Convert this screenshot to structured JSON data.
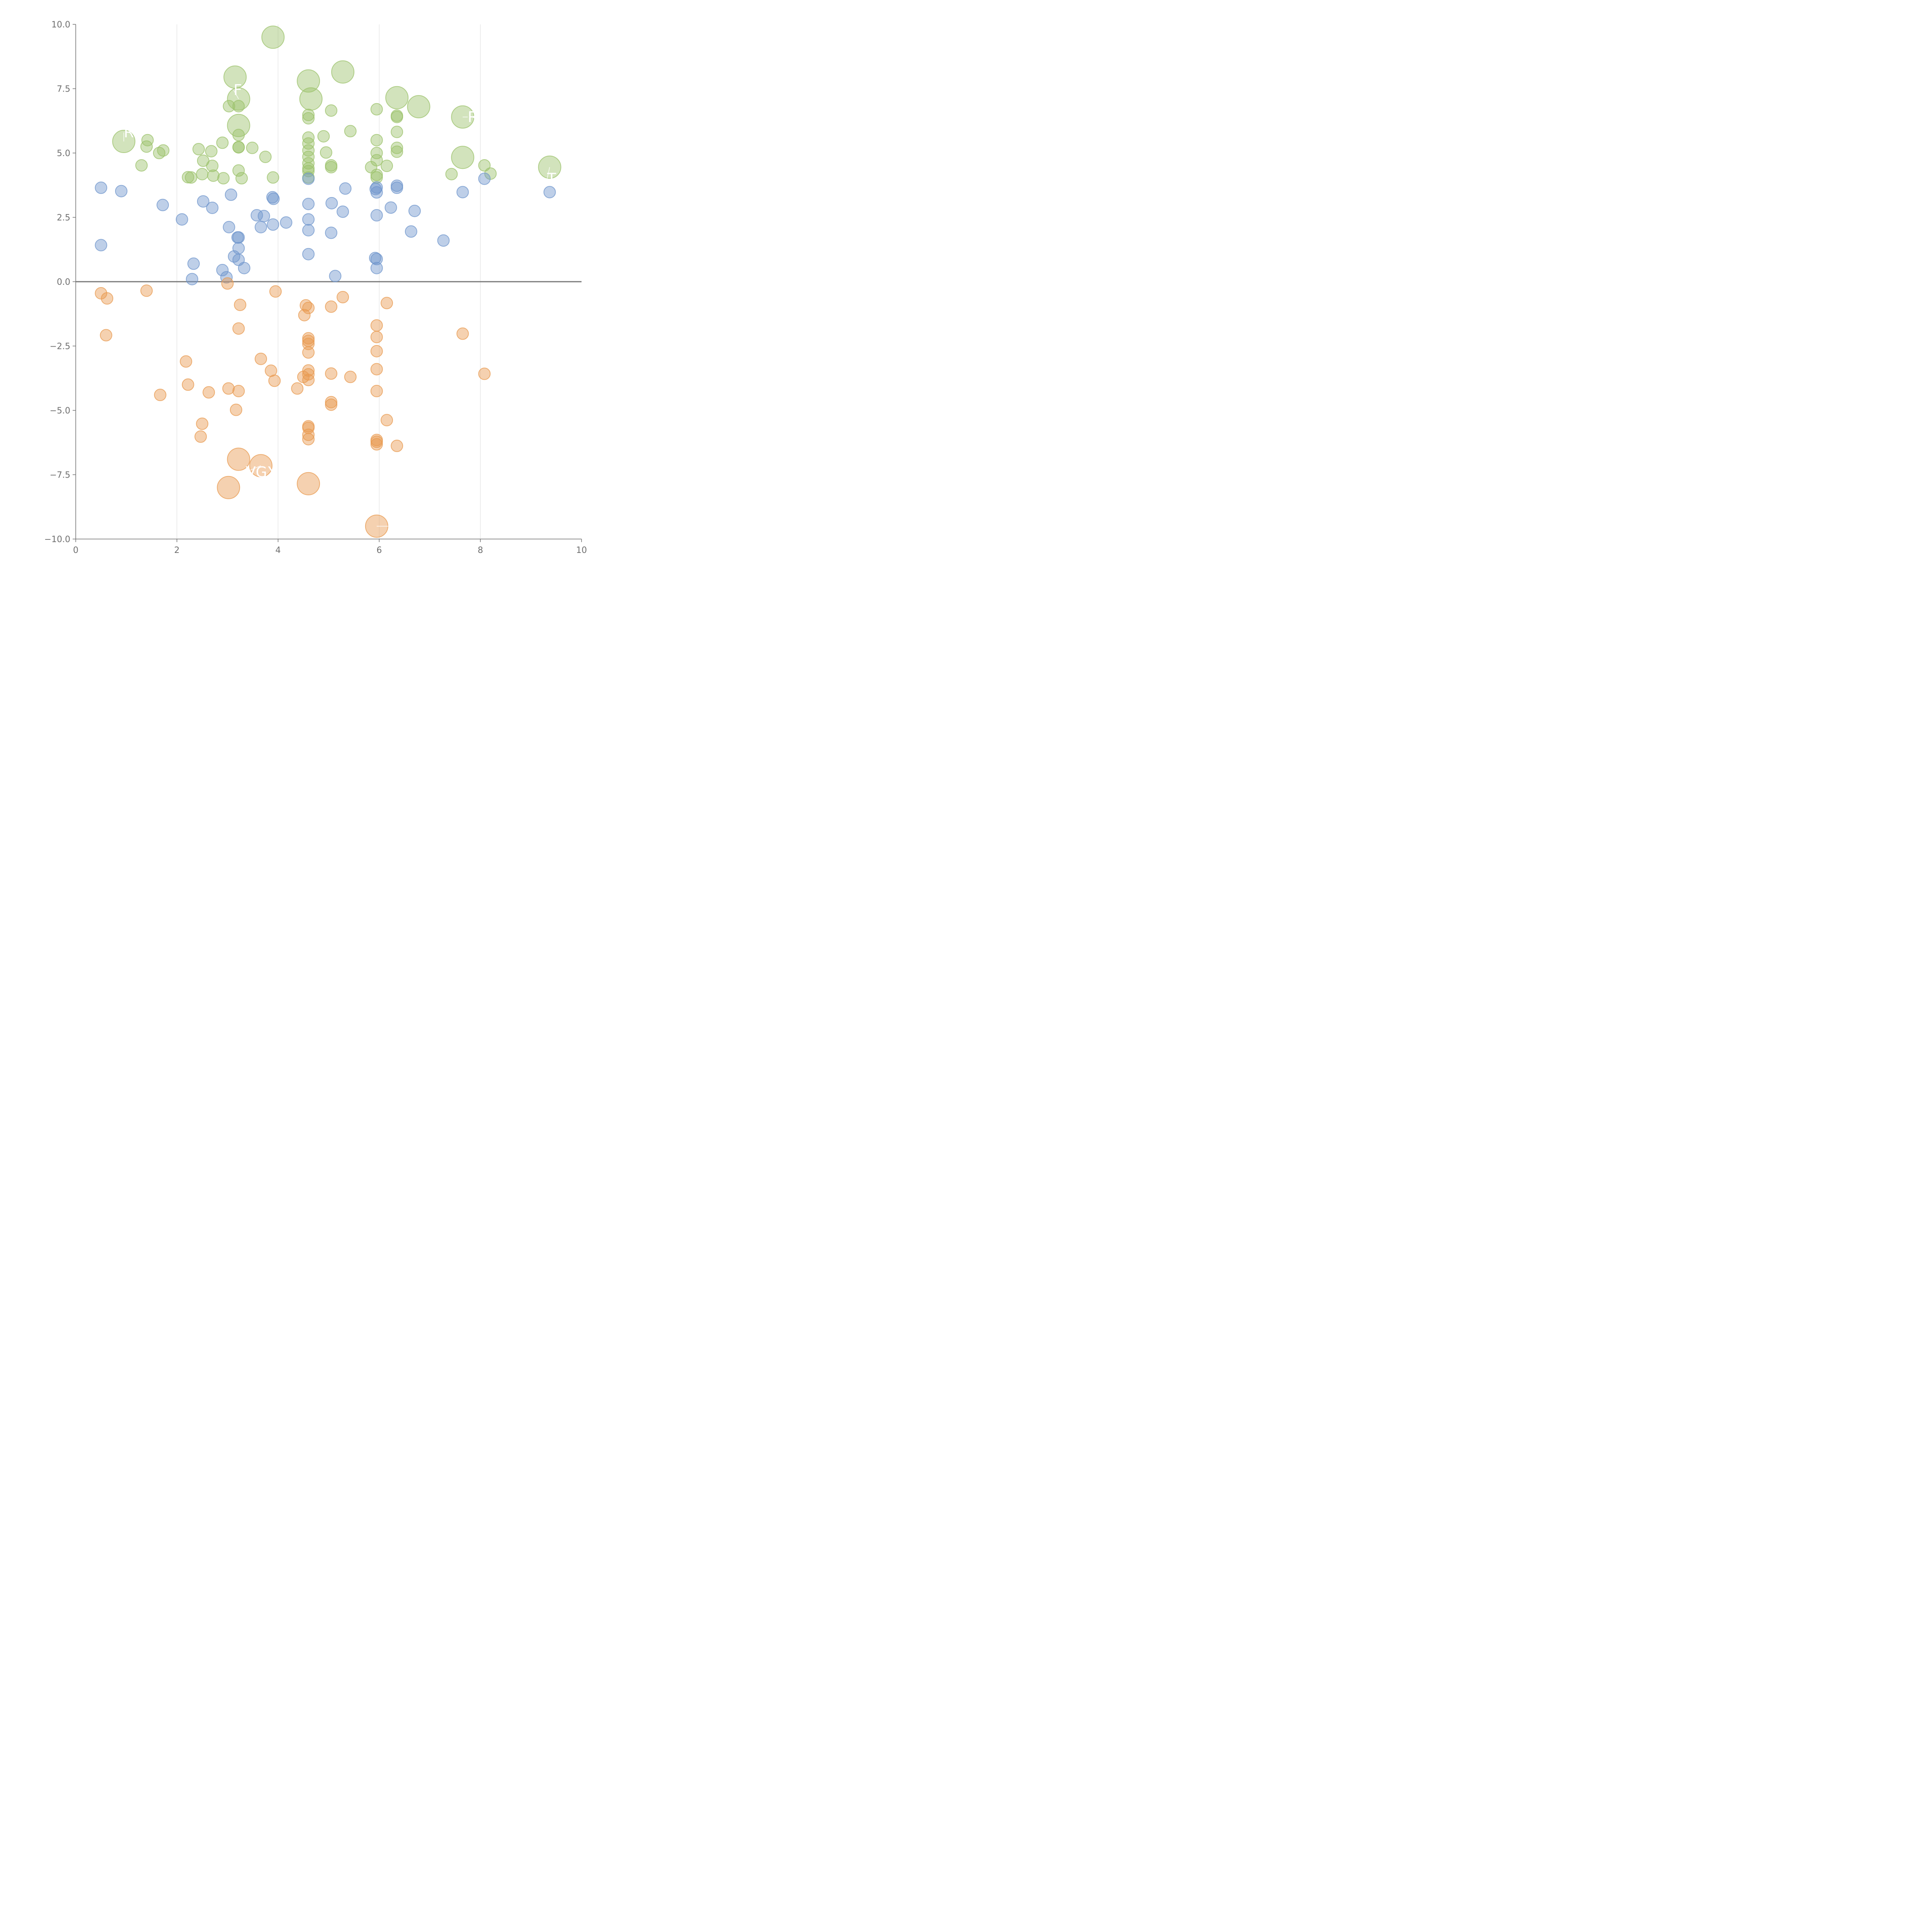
{
  "colors": {
    "green": "#9bc26a",
    "blue": "#6f95cc",
    "orange": "#e8994f",
    "axis": "#6f6f6f",
    "grid": "#dcdcdc",
    "zero_line": "#777777"
  },
  "chart_data": {
    "type": "scatter",
    "title": "",
    "xlabel": "",
    "ylabel": "",
    "xlim": [
      0,
      10
    ],
    "ylim": [
      -10,
      10
    ],
    "x_ticks": [
      "0",
      "2",
      "4",
      "6",
      "8",
      "10"
    ],
    "y_ticks": [
      "10.0",
      "7.5",
      "5.0",
      "2.5",
      "0.0",
      "−2.5",
      "−5.0",
      "−7.5",
      "−10.0"
    ],
    "grid": "vertical lines at x = 2, 4, 6, 8",
    "reference_line": "horizontal at y = 0",
    "series": [
      {
        "color": "green",
        "points": [
          [
            3.9,
            9.5,
            2
          ],
          [
            3.15,
            7.95,
            2
          ],
          [
            4.6,
            7.8,
            2
          ],
          [
            5.28,
            8.15,
            2
          ],
          [
            3.22,
            7.1,
            2
          ],
          [
            4.65,
            7.1,
            2
          ],
          [
            6.35,
            7.15,
            2
          ],
          [
            6.78,
            6.8,
            2
          ],
          [
            7.65,
            6.4,
            2
          ],
          [
            3.22,
            6.07,
            2
          ],
          [
            0.95,
            5.45,
            2
          ],
          [
            7.65,
            4.83,
            2
          ],
          [
            9.37,
            4.45,
            2
          ],
          [
            3.03,
            6.82,
            1
          ],
          [
            3.22,
            6.82,
            1
          ],
          [
            4.6,
            6.48,
            1
          ],
          [
            4.6,
            6.35,
            1
          ],
          [
            5.05,
            6.65,
            1
          ],
          [
            5.95,
            6.7,
            1
          ],
          [
            6.35,
            6.45,
            1
          ],
          [
            6.35,
            6.4,
            1
          ],
          [
            5.43,
            5.85,
            1
          ],
          [
            4.9,
            5.65,
            1
          ],
          [
            6.35,
            5.82,
            1
          ],
          [
            3.22,
            5.7,
            1
          ],
          [
            4.6,
            5.6,
            1
          ],
          [
            5.95,
            5.5,
            1
          ],
          [
            4.6,
            5.37,
            1
          ],
          [
            1.42,
            5.5,
            1
          ],
          [
            1.4,
            5.25,
            1
          ],
          [
            1.65,
            5.0,
            1
          ],
          [
            1.73,
            5.1,
            1
          ],
          [
            1.3,
            4.52,
            1
          ],
          [
            2.43,
            5.15,
            1
          ],
          [
            2.68,
            5.07,
            1
          ],
          [
            2.9,
            5.4,
            1
          ],
          [
            3.22,
            5.23,
            1
          ],
          [
            3.22,
            5.22,
            1
          ],
          [
            3.49,
            5.2,
            1
          ],
          [
            2.52,
            4.7,
            1
          ],
          [
            2.7,
            4.5,
            1
          ],
          [
            2.5,
            4.18,
            1
          ],
          [
            2.72,
            4.12,
            1
          ],
          [
            2.92,
            4.02,
            1
          ],
          [
            2.22,
            4.06,
            1
          ],
          [
            2.28,
            4.05,
            1
          ],
          [
            3.22,
            4.32,
            1
          ],
          [
            3.28,
            4.02,
            1
          ],
          [
            3.75,
            4.85,
            1
          ],
          [
            3.9,
            4.05,
            1
          ],
          [
            4.6,
            5.1,
            1
          ],
          [
            4.6,
            4.85,
            1
          ],
          [
            4.6,
            4.6,
            1
          ],
          [
            4.6,
            4.4,
            1
          ],
          [
            4.6,
            4.3,
            1
          ],
          [
            4.6,
            4.05,
            1
          ],
          [
            4.95,
            5.02,
            1
          ],
          [
            5.05,
            4.52,
            1
          ],
          [
            5.05,
            4.45,
            1
          ],
          [
            5.84,
            4.45,
            1
          ],
          [
            5.95,
            5.0,
            1
          ],
          [
            5.95,
            4.72,
            1
          ],
          [
            5.95,
            4.15,
            1
          ],
          [
            5.95,
            4.05,
            1
          ],
          [
            6.15,
            4.5,
            1
          ],
          [
            6.35,
            5.2,
            1
          ],
          [
            6.35,
            5.05,
            1
          ],
          [
            7.43,
            4.18,
            1
          ],
          [
            8.08,
            4.52,
            1
          ],
          [
            8.2,
            4.2,
            1
          ]
        ]
      },
      {
        "color": "blue",
        "points": [
          [
            0.5,
            3.65,
            1
          ],
          [
            0.9,
            3.52,
            1
          ],
          [
            1.72,
            2.98,
            1
          ],
          [
            2.1,
            2.42,
            1
          ],
          [
            2.52,
            3.12,
            1
          ],
          [
            2.7,
            2.87,
            1
          ],
          [
            3.07,
            3.38,
            1
          ],
          [
            3.03,
            2.12,
            1
          ],
          [
            3.58,
            2.58,
            1
          ],
          [
            3.72,
            2.55,
            1
          ],
          [
            3.66,
            2.12,
            1
          ],
          [
            3.89,
            3.28,
            1
          ],
          [
            3.91,
            3.22,
            1
          ],
          [
            3.9,
            2.22,
            1
          ],
          [
            4.16,
            2.3,
            1
          ],
          [
            4.6,
            4.0,
            1
          ],
          [
            4.6,
            3.02,
            1
          ],
          [
            4.6,
            2.42,
            1
          ],
          [
            4.6,
            2.0,
            1
          ],
          [
            4.6,
            1.07,
            1
          ],
          [
            5.06,
            3.05,
            1
          ],
          [
            5.05,
            1.9,
            1
          ],
          [
            5.33,
            3.62,
            1
          ],
          [
            5.28,
            2.72,
            1
          ],
          [
            5.13,
            0.22,
            1
          ],
          [
            5.93,
            3.6,
            1
          ],
          [
            5.95,
            3.66,
            1
          ],
          [
            5.95,
            3.47,
            1
          ],
          [
            5.95,
            2.58,
            1
          ],
          [
            5.92,
            0.92,
            1
          ],
          [
            5.95,
            0.88,
            1
          ],
          [
            5.95,
            0.53,
            1
          ],
          [
            6.35,
            3.73,
            1
          ],
          [
            6.35,
            3.65,
            1
          ],
          [
            6.23,
            2.88,
            1
          ],
          [
            6.7,
            2.75,
            1
          ],
          [
            6.63,
            1.95,
            1
          ],
          [
            7.27,
            1.6,
            1
          ],
          [
            7.65,
            3.48,
            1
          ],
          [
            8.08,
            4.0,
            1
          ],
          [
            9.37,
            3.48,
            1
          ],
          [
            0.5,
            1.42,
            1
          ],
          [
            3.2,
            1.72,
            1
          ],
          [
            3.22,
            1.72,
            1
          ],
          [
            3.22,
            1.3,
            1
          ],
          [
            3.13,
            0.98,
            1
          ],
          [
            3.22,
            0.85,
            1
          ],
          [
            3.33,
            0.53,
            1
          ],
          [
            2.33,
            0.7,
            1
          ],
          [
            2.9,
            0.45,
            1
          ],
          [
            2.98,
            0.17,
            1
          ],
          [
            2.3,
            0.1,
            1
          ]
        ]
      },
      {
        "color": "orange",
        "points": [
          [
            0.5,
            -0.45,
            1
          ],
          [
            0.62,
            -0.65,
            1
          ],
          [
            1.4,
            -0.35,
            1
          ],
          [
            0.6,
            -2.08,
            1
          ],
          [
            3.0,
            -0.07,
            1
          ],
          [
            3.25,
            -0.9,
            1
          ],
          [
            3.22,
            -1.82,
            1
          ],
          [
            3.95,
            -0.38,
            1
          ],
          [
            4.55,
            -0.92,
            1
          ],
          [
            4.6,
            -1.02,
            1
          ],
          [
            4.52,
            -1.3,
            1
          ],
          [
            5.05,
            -0.97,
            1
          ],
          [
            5.28,
            -0.6,
            1
          ],
          [
            6.15,
            -0.83,
            1
          ],
          [
            5.95,
            -1.7,
            1
          ],
          [
            4.6,
            -2.2,
            1
          ],
          [
            4.6,
            -2.3,
            1
          ],
          [
            4.6,
            -2.42,
            1
          ],
          [
            4.6,
            -2.75,
            1
          ],
          [
            5.95,
            -2.15,
            1
          ],
          [
            5.95,
            -2.7,
            1
          ],
          [
            7.65,
            -2.02,
            1
          ],
          [
            2.18,
            -3.1,
            1
          ],
          [
            3.66,
            -3.0,
            1
          ],
          [
            3.86,
            -3.46,
            1
          ],
          [
            3.93,
            -3.85,
            1
          ],
          [
            2.22,
            -4.0,
            1
          ],
          [
            1.67,
            -4.4,
            1
          ],
          [
            2.63,
            -4.3,
            1
          ],
          [
            3.02,
            -4.15,
            1
          ],
          [
            3.22,
            -4.25,
            1
          ],
          [
            3.17,
            -4.98,
            1
          ],
          [
            4.38,
            -4.15,
            1
          ],
          [
            4.5,
            -3.7,
            1
          ],
          [
            4.6,
            -3.45,
            1
          ],
          [
            4.6,
            -3.6,
            1
          ],
          [
            4.6,
            -3.82,
            1
          ],
          [
            5.05,
            -3.57,
            1
          ],
          [
            5.43,
            -3.7,
            1
          ],
          [
            5.95,
            -3.4,
            1
          ],
          [
            5.95,
            -4.25,
            1
          ],
          [
            8.08,
            -3.58,
            1
          ],
          [
            5.05,
            -4.68,
            1
          ],
          [
            5.05,
            -4.78,
            1
          ],
          [
            6.15,
            -5.38,
            1
          ],
          [
            2.5,
            -5.52,
            1
          ],
          [
            2.47,
            -6.02,
            1
          ],
          [
            4.6,
            -5.62,
            1
          ],
          [
            4.6,
            -5.68,
            1
          ],
          [
            4.6,
            -5.95,
            1
          ],
          [
            4.6,
            -6.12,
            1
          ],
          [
            5.95,
            -6.15,
            1
          ],
          [
            5.95,
            -6.22,
            1
          ],
          [
            5.95,
            -6.32,
            1
          ],
          [
            6.35,
            -6.38,
            1
          ],
          [
            3.22,
            -6.9,
            2
          ],
          [
            3.66,
            -7.15,
            2
          ],
          [
            3.02,
            -8.0,
            2
          ],
          [
            4.6,
            -7.85,
            2
          ],
          [
            5.95,
            -9.5,
            2
          ]
        ]
      }
    ],
    "annotations": [
      {
        "text": "R",
        "point": [
          0.95,
          5.45
        ],
        "dx": 0.0,
        "dy": 0.35
      },
      {
        "text": "F",
        "point": [
          3.22,
          7.1
        ],
        "dx": -0.1,
        "dy": 0.35
      },
      {
        "text": "R",
        "point": [
          7.65,
          6.4
        ],
        "dx": 0.1,
        "dy": 0.0
      },
      {
        "text": "T",
        "point": [
          9.37,
          4.45
        ],
        "dx": -0.05,
        "dy": -0.45
      },
      {
        "text": "VGX",
        "point": [
          3.66,
          -7.15
        ],
        "dx": -0.3,
        "dy": -0.25
      },
      {
        "text": "C",
        "point": [
          5.95,
          -9.5
        ],
        "dx": 0.25,
        "dy": 0.0
      }
    ]
  }
}
